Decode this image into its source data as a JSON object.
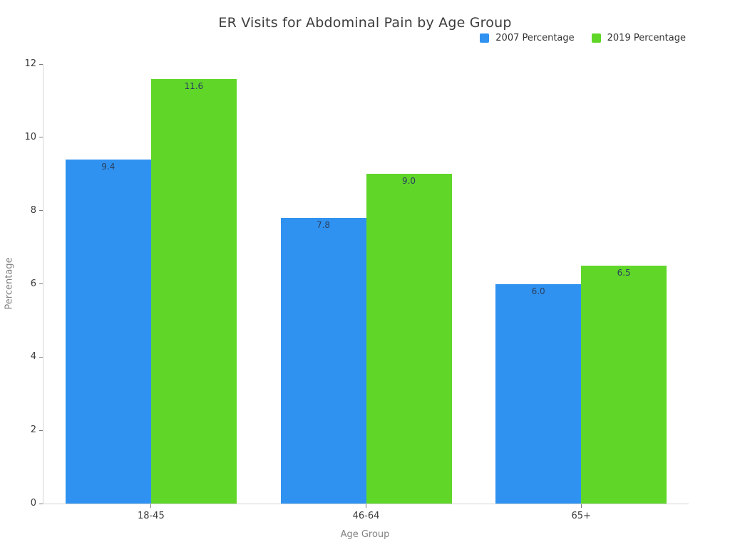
{
  "chart_data": {
    "type": "bar",
    "title": "ER Visits for Abdominal Pain by Age Group",
    "xlabel": "Age Group",
    "ylabel": "Percentage",
    "categories": [
      "18-45",
      "46-64",
      "65+"
    ],
    "series": [
      {
        "name": "2007 Percentage",
        "color": "#3092F0",
        "values": [
          9.4,
          7.8,
          6.0
        ]
      },
      {
        "name": "2019 Percentage",
        "color": "#60D629",
        "values": [
          11.6,
          9.0,
          6.5
        ]
      }
    ],
    "ylim": [
      0,
      12
    ],
    "yticks": [
      0,
      2,
      4,
      6,
      8,
      10,
      12
    ],
    "grid": false,
    "legend_position": "top-right",
    "bar_value_labels": true,
    "axis_line_color": "#d5d5d5",
    "tick_color": "#7a7a7a"
  }
}
